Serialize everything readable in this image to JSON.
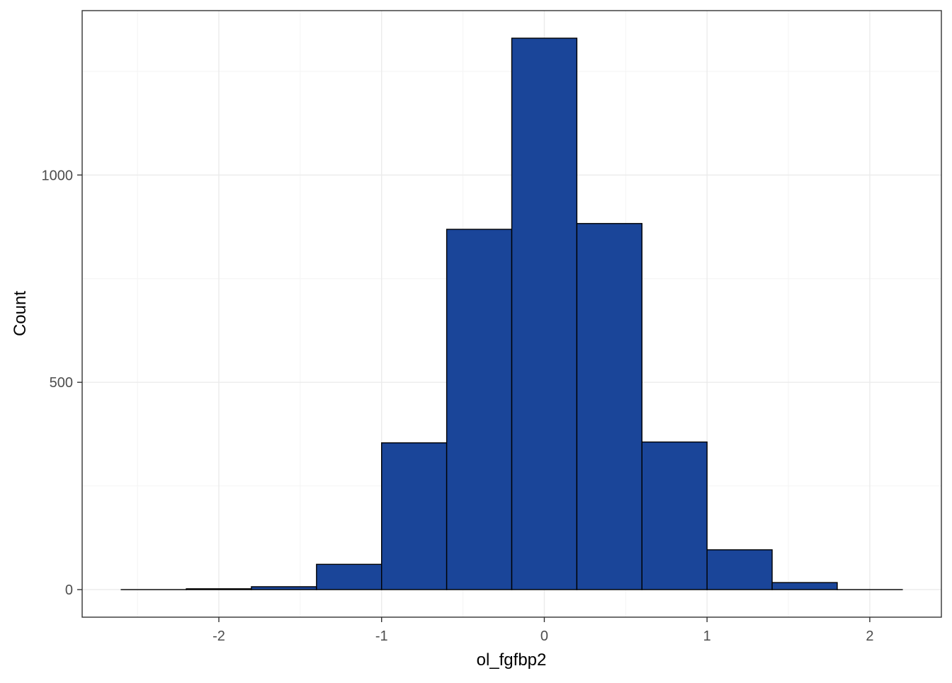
{
  "chart_data": {
    "type": "bar",
    "subtype": "histogram",
    "xlabel": "ol_fgfbp2",
    "ylabel": "Count",
    "bins": [
      {
        "x0": -2.6,
        "x1": -2.2,
        "count": 0
      },
      {
        "x0": -2.2,
        "x1": -1.8,
        "count": 2
      },
      {
        "x0": -1.8,
        "x1": -1.4,
        "count": 7
      },
      {
        "x0": -1.4,
        "x1": -1.0,
        "count": 61
      },
      {
        "x0": -1.0,
        "x1": -0.6,
        "count": 354
      },
      {
        "x0": -0.6,
        "x1": -0.2,
        "count": 869
      },
      {
        "x0": -0.2,
        "x1": 0.2,
        "count": 1330
      },
      {
        "x0": 0.2,
        "x1": 0.6,
        "count": 883
      },
      {
        "x0": 0.6,
        "x1": 1.0,
        "count": 356
      },
      {
        "x0": 1.0,
        "x1": 1.4,
        "count": 96
      },
      {
        "x0": 1.4,
        "x1": 1.8,
        "count": 17
      },
      {
        "x0": 1.8,
        "x1": 2.2,
        "count": 0
      }
    ],
    "xlim": [
      -2.84,
      2.44
    ],
    "ylim": [
      -66.5,
      1396.5
    ],
    "x_ticks": [
      -2,
      -1,
      0,
      1,
      2
    ],
    "x_tick_labels": [
      "-2",
      "-1",
      "0",
      "1",
      "2"
    ],
    "x_minor_ticks": [
      -2.5,
      -1.5,
      -0.5,
      0.5,
      1.5
    ],
    "y_ticks": [
      0,
      500,
      1000
    ],
    "y_tick_labels": [
      "0",
      "500",
      "1000"
    ],
    "y_minor_ticks": [
      250,
      750,
      1250
    ],
    "grid": true,
    "legend": "none",
    "colors": {
      "bar_fill": "#1a4599",
      "bar_stroke": "#000000",
      "panel_border": "#333333",
      "grid_major": "#ebebeb",
      "grid_minor": "#f4f4f4",
      "tick_text": "#4d4d4d"
    }
  }
}
